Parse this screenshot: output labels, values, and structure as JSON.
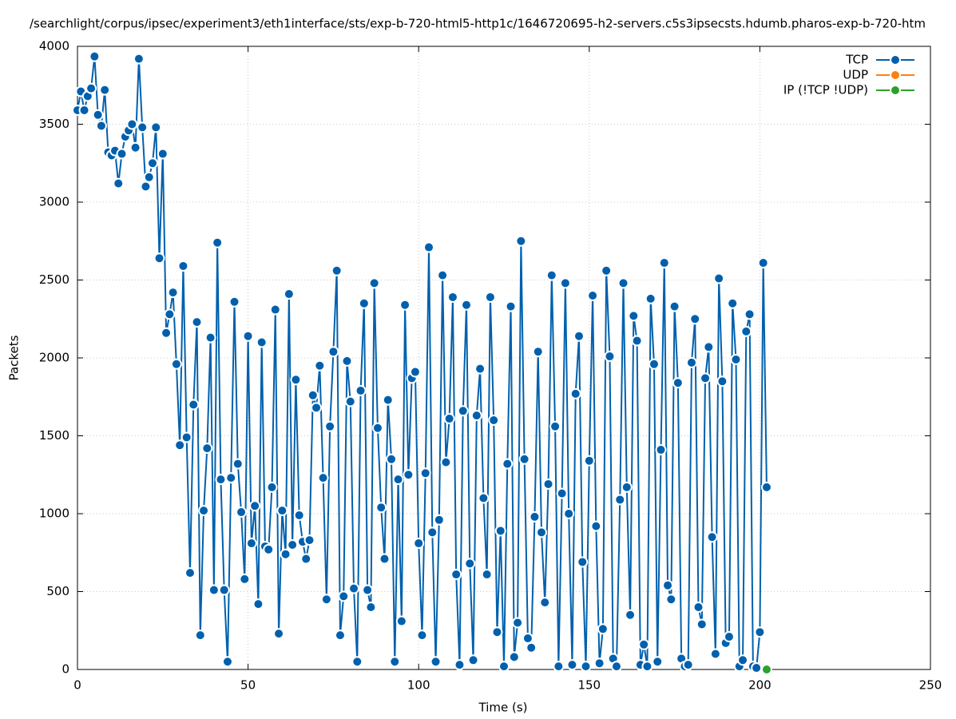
{
  "chart_data": {
    "type": "line",
    "title": "/searchlight/corpus/ipsec/experiment3/eth1interface/sts/exp-b-720-html5-http1c/1646720695-h2-servers.c5s3ipsecsts.hdumb.pharos-exp-b-720-htm",
    "x_label": "Time (s)",
    "y_label": "Packets",
    "xlim": [
      0,
      250
    ],
    "xticks": [
      0,
      50,
      100,
      150,
      200,
      250
    ],
    "ylim": [
      0,
      4000
    ],
    "yticks": [
      0,
      500,
      1000,
      1500,
      2000,
      2500,
      3000,
      3500,
      4000
    ],
    "grid": true,
    "legend": "top-right",
    "series": [
      {
        "name": "TCP",
        "color": "#0060ad",
        "x": [
          0,
          1,
          2,
          3,
          4,
          5,
          6,
          7,
          8,
          9,
          10,
          11,
          12,
          13,
          14,
          15,
          16,
          17,
          18,
          19,
          20,
          21,
          22,
          23,
          24,
          25,
          26,
          27,
          28,
          29,
          30,
          31,
          32,
          33,
          34,
          35,
          36,
          37,
          38,
          39,
          40,
          41,
          42,
          43,
          44,
          45,
          46,
          47,
          48,
          49,
          50,
          51,
          52,
          53,
          54,
          55,
          56,
          57,
          58,
          59,
          60,
          61,
          62,
          63,
          64,
          65,
          66,
          67,
          68,
          69,
          70,
          71,
          72,
          73,
          74,
          75,
          76,
          77,
          78,
          79,
          80,
          81,
          82,
          83,
          84,
          85,
          86,
          87,
          88,
          89,
          90,
          91,
          92,
          93,
          94,
          95,
          96,
          97,
          98,
          99,
          100,
          101,
          102,
          103,
          104,
          105,
          106,
          107,
          108,
          109,
          110,
          111,
          112,
          113,
          114,
          115,
          116,
          117,
          118,
          119,
          120,
          121,
          122,
          123,
          124,
          125,
          126,
          127,
          128,
          129,
          130,
          131,
          132,
          133,
          134,
          135,
          136,
          137,
          138,
          139,
          140,
          141,
          142,
          143,
          144,
          145,
          146,
          147,
          148,
          149,
          150,
          151,
          152,
          153,
          154,
          155,
          156,
          157,
          158,
          159,
          160,
          161,
          162,
          163,
          164,
          165,
          166,
          167,
          168,
          169,
          170,
          171,
          172,
          173,
          174,
          175,
          176,
          177,
          178,
          179,
          180,
          181,
          182,
          183,
          184,
          185,
          186,
          187,
          188,
          189,
          190,
          191,
          192,
          193,
          194,
          195,
          196,
          197,
          198,
          199,
          200,
          201,
          202
        ],
        "values": [
          3590,
          3710,
          3590,
          3680,
          3730,
          3935,
          3560,
          3490,
          3720,
          3320,
          3300,
          3330,
          3120,
          3310,
          3420,
          3460,
          3500,
          3350,
          3920,
          3480,
          3100,
          3160,
          3250,
          3480,
          2640,
          3310,
          2160,
          2280,
          2420,
          1960,
          1440,
          2590,
          1490,
          620,
          1700,
          2230,
          220,
          1020,
          1420,
          2130,
          510,
          2740,
          1220,
          510,
          50,
          1230,
          2360,
          1320,
          1010,
          580,
          2140,
          810,
          1050,
          420,
          2100,
          790,
          770,
          1170,
          2310,
          230,
          1020,
          740,
          2410,
          800,
          1860,
          990,
          820,
          710,
          830,
          1760,
          1680,
          1950,
          1230,
          450,
          1560,
          2040,
          2560,
          220,
          470,
          1980,
          1720,
          520,
          50,
          1790,
          2350,
          510,
          400,
          2480,
          1550,
          1040,
          710,
          1730,
          1350,
          50,
          1220,
          310,
          2340,
          1250,
          1870,
          1910,
          810,
          220,
          1260,
          2710,
          880,
          50,
          960,
          2530,
          1330,
          1610,
          2390,
          610,
          30,
          1660,
          2340,
          680,
          60,
          1630,
          1930,
          1100,
          610,
          2390,
          1600,
          240,
          890,
          20,
          1320,
          2330,
          80,
          300,
          2750,
          1350,
          200,
          140,
          980,
          2040,
          880,
          430,
          1190,
          2530,
          1560,
          20,
          1130,
          2480,
          1000,
          30,
          1770,
          2140,
          690,
          20,
          1340,
          2400,
          920,
          40,
          260,
          2560,
          2010,
          70,
          20,
          1090,
          2480,
          1170,
          350,
          2270,
          2110,
          30,
          160,
          20,
          2380,
          1960,
          50,
          1410,
          2610,
          540,
          450,
          2330,
          1840,
          70,
          20,
          30,
          1970,
          2250,
          400,
          290,
          1870,
          2070,
          850,
          100,
          2510,
          1850,
          170,
          210,
          2350,
          1990,
          20,
          60,
          2170,
          2280,
          20,
          10,
          240,
          2610,
          1170
        ]
      },
      {
        "name": "UDP",
        "color": "#ff7f0e",
        "x": [],
        "values": []
      },
      {
        "name": "IP (!TCP  !UDP)",
        "color": "#2ca02c",
        "x": [
          202
        ],
        "values": [
          0
        ]
      }
    ]
  }
}
